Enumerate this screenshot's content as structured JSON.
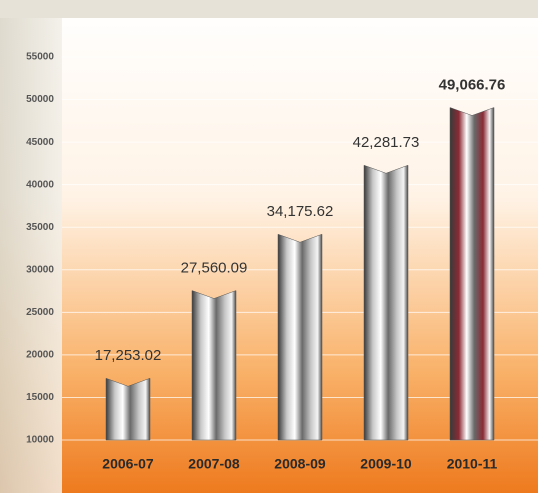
{
  "chart_data": {
    "type": "bar",
    "categories": [
      "2006-07",
      "2007-08",
      "2008-09",
      "2009-10",
      "2010-11"
    ],
    "values": [
      17253.02,
      27560.09,
      34175.62,
      42281.73,
      49066.76
    ],
    "value_labels": [
      "17,253.02",
      "27,560.09",
      "34,175.62",
      "42,281.73",
      "49,066.76"
    ],
    "colors": [
      "#c8c8c8",
      "#c8c8c8",
      "#c8c8c8",
      "#c8c8c8",
      "#8a2a34"
    ],
    "ylim": [
      10000,
      55000
    ],
    "yticks": [
      10000,
      15000,
      20000,
      25000,
      30000,
      35000,
      40000,
      45000,
      50000,
      55000
    ],
    "grid": true
  }
}
